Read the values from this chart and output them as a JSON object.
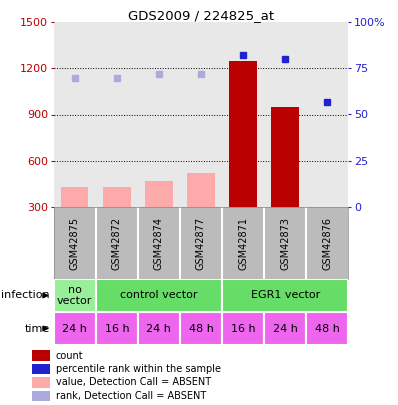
{
  "title": "GDS2009 / 224825_at",
  "samples": [
    "GSM42875",
    "GSM42872",
    "GSM42874",
    "GSM42877",
    "GSM42871",
    "GSM42873",
    "GSM42876"
  ],
  "bar_values": [
    430,
    430,
    470,
    520,
    1250,
    950,
    270
  ],
  "bar_absent": [
    true,
    true,
    true,
    true,
    false,
    false,
    false
  ],
  "rank_values": [
    70,
    70,
    72,
    72,
    82,
    80,
    57
  ],
  "rank_absent": [
    true,
    true,
    true,
    true,
    false,
    false,
    false
  ],
  "ylim_left": [
    300,
    1500
  ],
  "ylim_right": [
    0,
    100
  ],
  "yticks_left": [
    300,
    600,
    900,
    1200,
    1500
  ],
  "yticks_right": [
    0,
    25,
    50,
    75,
    100
  ],
  "inf_groups": [
    {
      "label": "no\nvector",
      "start": 0,
      "end": 1,
      "color": "#99ee99"
    },
    {
      "label": "control vector",
      "start": 1,
      "end": 4,
      "color": "#66dd66"
    },
    {
      "label": "EGR1 vector",
      "start": 4,
      "end": 7,
      "color": "#66dd66"
    }
  ],
  "time_labels": [
    "24 h",
    "16 h",
    "24 h",
    "48 h",
    "16 h",
    "24 h",
    "48 h"
  ],
  "time_color": "#ee66ee",
  "time_color_alt": "#dd44dd",
  "bar_color_present": "#bb0000",
  "bar_color_absent": "#ffaaaa",
  "rank_color_present": "#2222cc",
  "rank_color_absent": "#aaaadd",
  "sample_bg": "#bbbbbb",
  "sample_border": "#888888",
  "main_bg": "#e8e8e8",
  "legend_items": [
    {
      "color": "#bb0000",
      "label": "count"
    },
    {
      "color": "#2222cc",
      "label": "percentile rank within the sample"
    },
    {
      "color": "#ffaaaa",
      "label": "value, Detection Call = ABSENT"
    },
    {
      "color": "#aaaadd",
      "label": "rank, Detection Call = ABSENT"
    }
  ]
}
